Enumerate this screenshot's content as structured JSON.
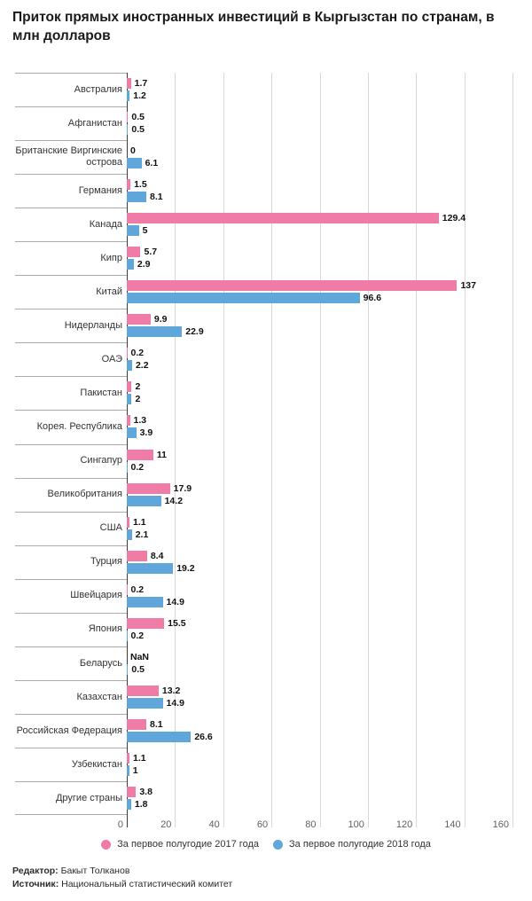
{
  "title": "Приток прямых иностранных инвестиций в Кыргызстан по странам, в млн долларов",
  "colors": {
    "series_2017": "#f17ba7",
    "series_2018": "#5fa6db",
    "axis_line": "#3b3b3b",
    "gridline": "#d9d9d9",
    "row_separator": "#ababab"
  },
  "chart_data": {
    "type": "bar",
    "orientation": "horizontal",
    "title": "Приток прямых иностранных инвестиций в Кыргызстан по странам, в млн долларов",
    "xlabel": "",
    "ylabel": "",
    "xlim": [
      0,
      160
    ],
    "xticks": [
      "0",
      "20",
      "40",
      "60",
      "80",
      "100",
      "120",
      "140",
      "160"
    ],
    "grid": true,
    "legend_position": "bottom",
    "categories": [
      "Австралия",
      "Афганистан",
      "Британские Виргинские острова",
      "Германия",
      "Канада",
      "Кипр",
      "Китай",
      "Нидерланды",
      "ОАЭ",
      "Пакистан",
      "Корея. Республика",
      "Сингапур",
      "Великобритания",
      "США",
      "Турция",
      "Швейцария",
      "Япония",
      "Беларусь",
      "Казахстан",
      "Российская Федерация",
      "Узбекистан",
      "Другие страны"
    ],
    "series": [
      {
        "name": "За первое полугодие 2017 года",
        "color": "#f17ba7",
        "values": [
          1.7,
          0.5,
          0,
          1.5,
          129.4,
          5.7,
          137,
          9.9,
          0.2,
          2,
          1.3,
          11,
          17.9,
          1.1,
          8.4,
          0.2,
          15.5,
          null,
          13.2,
          8.1,
          1.1,
          3.8
        ],
        "labels": [
          "1.7",
          "0.5",
          "0",
          "1.5",
          "129.4",
          "5.7",
          "137",
          "9.9",
          "0.2",
          "2",
          "1.3",
          "11",
          "17.9",
          "1.1",
          "8.4",
          "0.2",
          "15.5",
          "NaN",
          "13.2",
          "8.1",
          "1.1",
          "3.8"
        ]
      },
      {
        "name": "За первое полугодие 2018 года",
        "color": "#5fa6db",
        "values": [
          1.2,
          0.5,
          6.1,
          8.1,
          5,
          2.9,
          96.6,
          22.9,
          2.2,
          2,
          3.9,
          0.2,
          14.2,
          2.1,
          19.2,
          14.9,
          0.2,
          0.5,
          14.9,
          26.6,
          1,
          1.8
        ],
        "labels": [
          "1.2",
          "0.5",
          "6.1",
          "8.1",
          "5",
          "2.9",
          "96.6",
          "22.9",
          "2.2",
          "2",
          "3.9",
          "0.2",
          "14.2",
          "2.1",
          "19.2",
          "14.9",
          "0.2",
          "0.5",
          "14.9",
          "26.6",
          "1",
          "1.8"
        ]
      }
    ]
  },
  "legend": {
    "items": [
      {
        "label": "За первое полугодие 2017 года",
        "color": "#f17ba7"
      },
      {
        "label": "За первое полугодие 2018 года",
        "color": "#5fa6db"
      }
    ]
  },
  "footer": {
    "editor_label": "Редактор:",
    "editor": "Бакыт Толканов",
    "source_label": "Источник:",
    "source": "Национальный статистический комитет"
  }
}
